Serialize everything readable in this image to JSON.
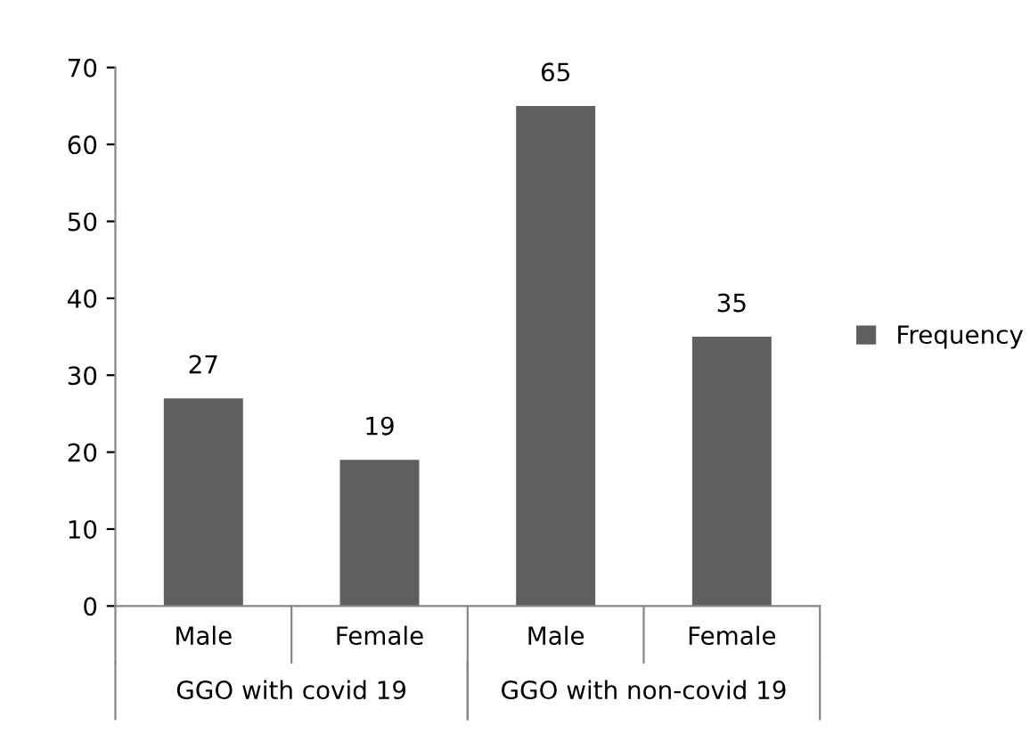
{
  "chart_data": {
    "type": "bar",
    "categories": [
      "Male",
      "Female",
      "Male",
      "Female"
    ],
    "series": [
      {
        "name": "Frequency",
        "color": "#5f5f5f",
        "values": [
          27,
          19,
          65,
          35
        ]
      }
    ],
    "annotations": [
      "GGO with covid 19",
      "GGO with non-covid 19"
    ],
    "ylim": [
      0,
      70
    ],
    "yticks": [
      0,
      10,
      20,
      30,
      40,
      50,
      60,
      70
    ],
    "data_labels": true,
    "legend": "right",
    "grid": false
  }
}
